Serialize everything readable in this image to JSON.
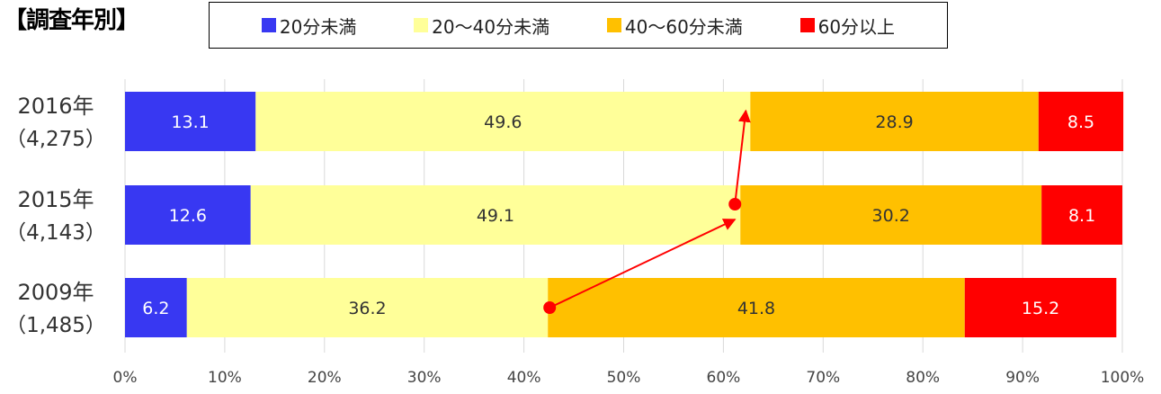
{
  "chart_data": {
    "type": "bar",
    "orientation": "horizontal",
    "stacked": true,
    "title": "【調査年別】",
    "categories": [
      {
        "year": "2016年",
        "n": "（4,275）"
      },
      {
        "year": "2015年",
        "n": "（4,143）"
      },
      {
        "year": "2009年",
        "n": "（1,485）"
      }
    ],
    "series": [
      {
        "name": "20分未満",
        "color": "#3838f2",
        "label_color": "#ffffff",
        "values": [
          13.1,
          12.6,
          6.2
        ]
      },
      {
        "name": "20〜40分未満",
        "color": "#ffff99",
        "label_color": "#333333",
        "values": [
          49.6,
          49.1,
          36.2
        ]
      },
      {
        "name": "40〜60分未満",
        "color": "#ffc000",
        "label_color": "#333333",
        "values": [
          28.9,
          30.2,
          41.8
        ]
      },
      {
        "name": "60分以上",
        "color": "#ff0000",
        "label_color": "#ffffff",
        "values": [
          8.5,
          8.1,
          15.2
        ]
      }
    ],
    "xlim": [
      0,
      100
    ],
    "x_ticks": [
      "0%",
      "10%",
      "20%",
      "30%",
      "40%",
      "50%",
      "60%",
      "70%",
      "80%",
      "90%",
      "100%"
    ],
    "grid": true,
    "legend_position": "top",
    "annotation": {
      "type": "arrow-trend",
      "color": "#ff0000",
      "from_series": "20〜40分未満",
      "note": "cumulative share trend"
    }
  }
}
